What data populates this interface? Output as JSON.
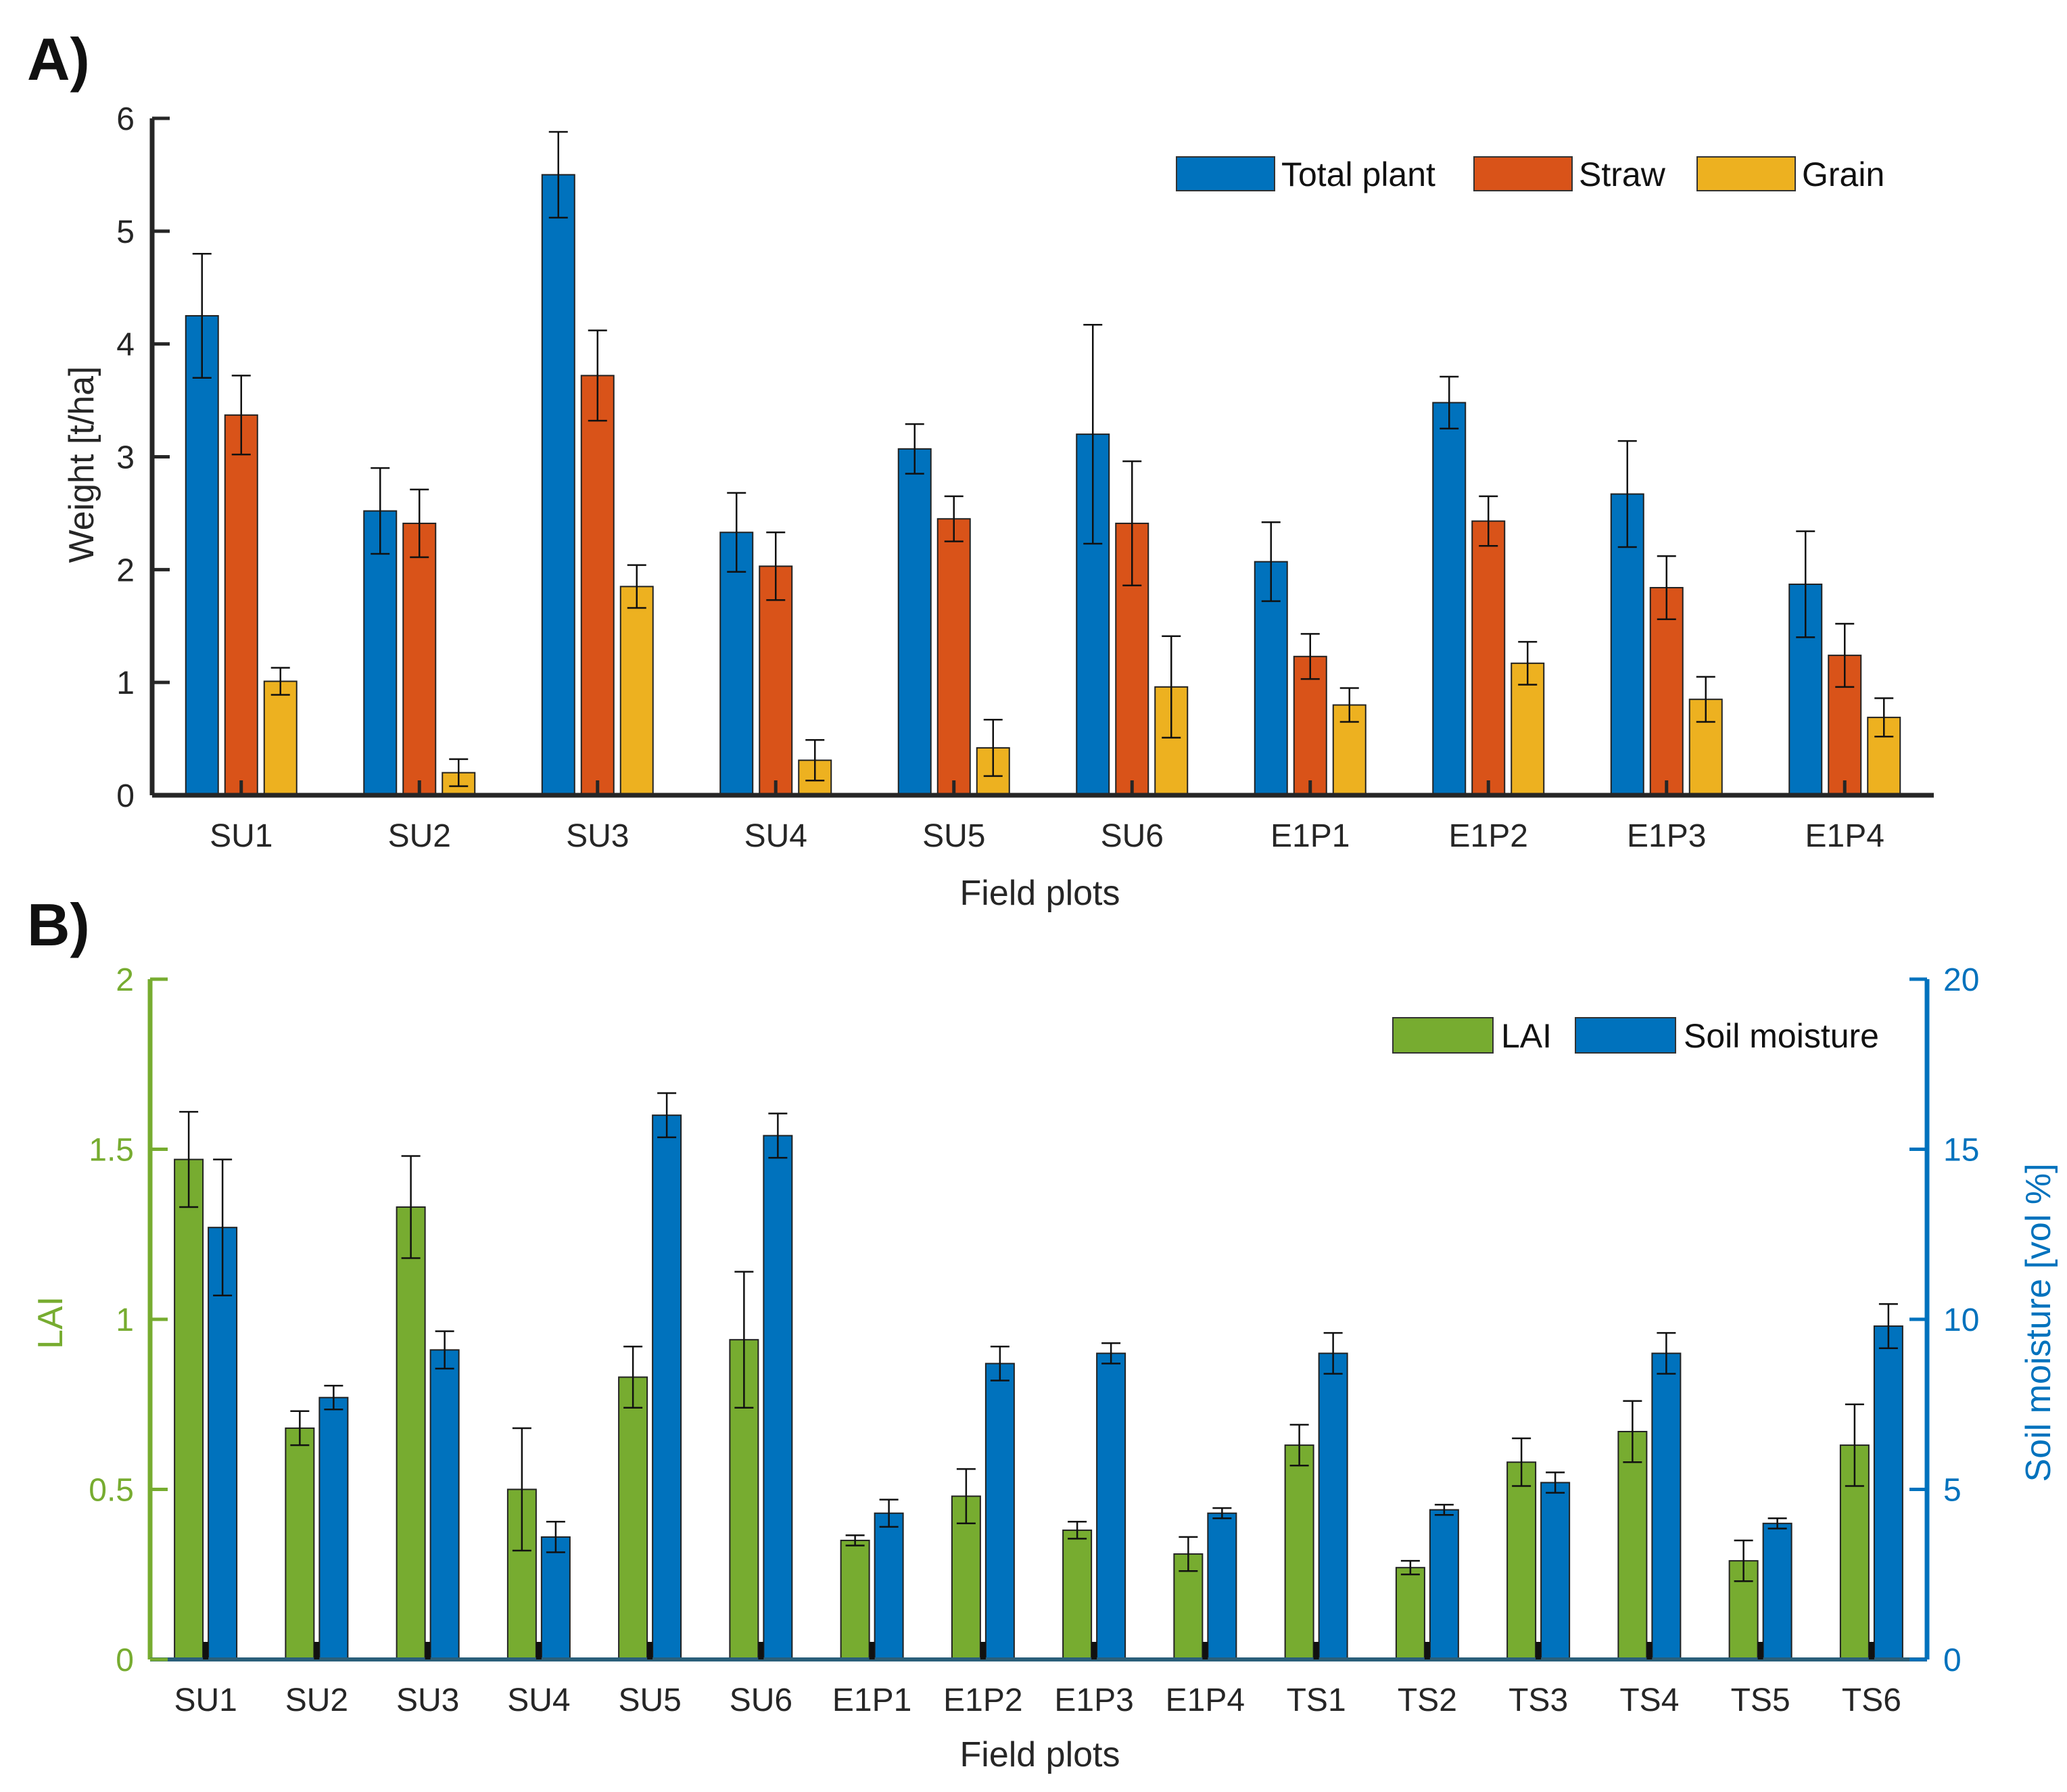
{
  "chart_data": [
    {
      "panel_label": "A)",
      "type": "bar",
      "title": "",
      "xlabel": "Field plots",
      "ylabel": "Weight [t/ha]",
      "ylim": [
        0,
        6
      ],
      "yticks": [
        "0",
        "1",
        "2",
        "3",
        "4",
        "5",
        "6"
      ],
      "grid": false,
      "legend_position": "top-right",
      "categories": [
        "SU1",
        "SU2",
        "SU3",
        "SU4",
        "SU5",
        "SU6",
        "E1P1",
        "E1P2",
        "E1P3",
        "E1P4"
      ],
      "series": [
        {
          "name": "Total plant",
          "color": "#0072BD",
          "values": [
            4.25,
            2.52,
            5.5,
            2.33,
            3.07,
            3.2,
            2.07,
            3.48,
            2.67,
            1.87
          ],
          "errors": [
            0.55,
            0.38,
            0.38,
            0.35,
            0.22,
            0.97,
            0.35,
            0.23,
            0.47,
            0.47
          ]
        },
        {
          "name": "Straw",
          "color": "#D95319",
          "values": [
            3.37,
            2.41,
            3.72,
            2.03,
            2.45,
            2.41,
            1.23,
            2.43,
            1.84,
            1.24
          ],
          "errors": [
            0.35,
            0.3,
            0.4,
            0.3,
            0.2,
            0.55,
            0.2,
            0.22,
            0.28,
            0.28
          ]
        },
        {
          "name": "Grain",
          "color": "#EDB120",
          "values": [
            1.01,
            0.2,
            1.85,
            0.31,
            0.42,
            0.96,
            0.8,
            1.17,
            0.85,
            0.69
          ],
          "errors": [
            0.12,
            0.12,
            0.19,
            0.18,
            0.25,
            0.45,
            0.15,
            0.19,
            0.2,
            0.17
          ]
        }
      ]
    },
    {
      "panel_label": "B)",
      "type": "bar",
      "title": "",
      "xlabel": "Field plots",
      "ylabel": "LAI",
      "ylabel_right": "Soil moisture [vol %]",
      "ylim": [
        0,
        2
      ],
      "ylim_right": [
        0,
        20
      ],
      "yticks": [
        "0",
        "0.5",
        "1",
        "1.5",
        "2"
      ],
      "yticks_right": [
        "0",
        "5",
        "10",
        "15",
        "20"
      ],
      "left_axis_color": "#77AC30",
      "right_axis_color": "#0072BD",
      "grid": false,
      "legend_position": "top-right",
      "categories": [
        "SU1",
        "SU2",
        "SU3",
        "SU4",
        "SU5",
        "SU6",
        "E1P1",
        "E1P2",
        "E1P3",
        "E1P4",
        "TS1",
        "TS2",
        "TS3",
        "TS4",
        "TS5",
        "TS6"
      ],
      "series": [
        {
          "name": "LAI",
          "axis": "left",
          "color": "#77AC30",
          "values": [
            1.47,
            0.68,
            1.33,
            0.5,
            0.83,
            0.94,
            0.35,
            0.48,
            0.38,
            0.31,
            0.63,
            0.27,
            0.58,
            0.67,
            0.29,
            0.63
          ],
          "errors": [
            0.14,
            0.05,
            0.15,
            0.18,
            0.09,
            0.2,
            0.015,
            0.08,
            0.025,
            0.05,
            0.06,
            0.02,
            0.07,
            0.09,
            0.06,
            0.12
          ]
        },
        {
          "name": "Soil moisture",
          "axis": "right",
          "color": "#0072BD",
          "values": [
            12.7,
            7.7,
            9.1,
            3.6,
            16.0,
            15.4,
            4.3,
            8.7,
            9.0,
            4.3,
            9.0,
            4.4,
            5.2,
            9.0,
            4.0,
            9.8
          ],
          "errors": [
            2.0,
            0.35,
            0.55,
            0.45,
            0.65,
            0.65,
            0.4,
            0.5,
            0.3,
            0.15,
            0.6,
            0.15,
            0.3,
            0.6,
            0.15,
            0.65
          ]
        }
      ]
    }
  ]
}
